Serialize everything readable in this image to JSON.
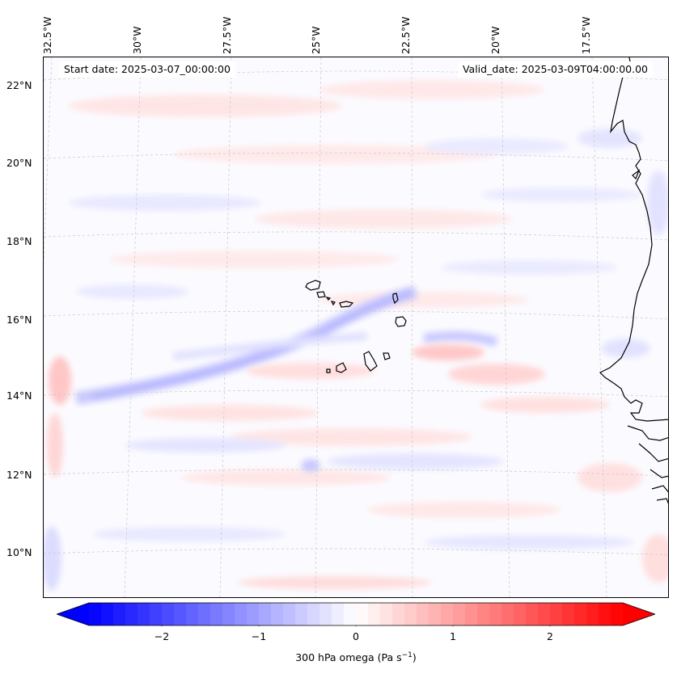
{
  "map": {
    "start_label": "Start date: 2025-03-07_00:00:00",
    "valid_label": "Valid_date: 2025-03-09T04:00:00.00",
    "lon_labels": [
      "32.5°W",
      "30°W",
      "27.5°W",
      "25°W",
      "22.5°W",
      "20°W",
      "17.5°W"
    ],
    "lat_labels": [
      "22°N",
      "20°N",
      "18°N",
      "16°N",
      "14°N",
      "12°N",
      "10°N"
    ],
    "colormap": "bwr",
    "colors": {
      "negative": "#0000ff",
      "zero": "#ffffff",
      "positive": "#ff0000",
      "coast": "#000000"
    }
  },
  "colorbar": {
    "ticks": [
      "−2",
      "−1",
      "0",
      "1",
      "2"
    ],
    "tick_values": [
      -2,
      -1,
      0,
      1,
      2
    ],
    "range": [
      -2.75,
      2.75
    ],
    "label": "300 hPa omega (Pa s",
    "label_exp": "−1",
    "label_close": ")"
  }
}
